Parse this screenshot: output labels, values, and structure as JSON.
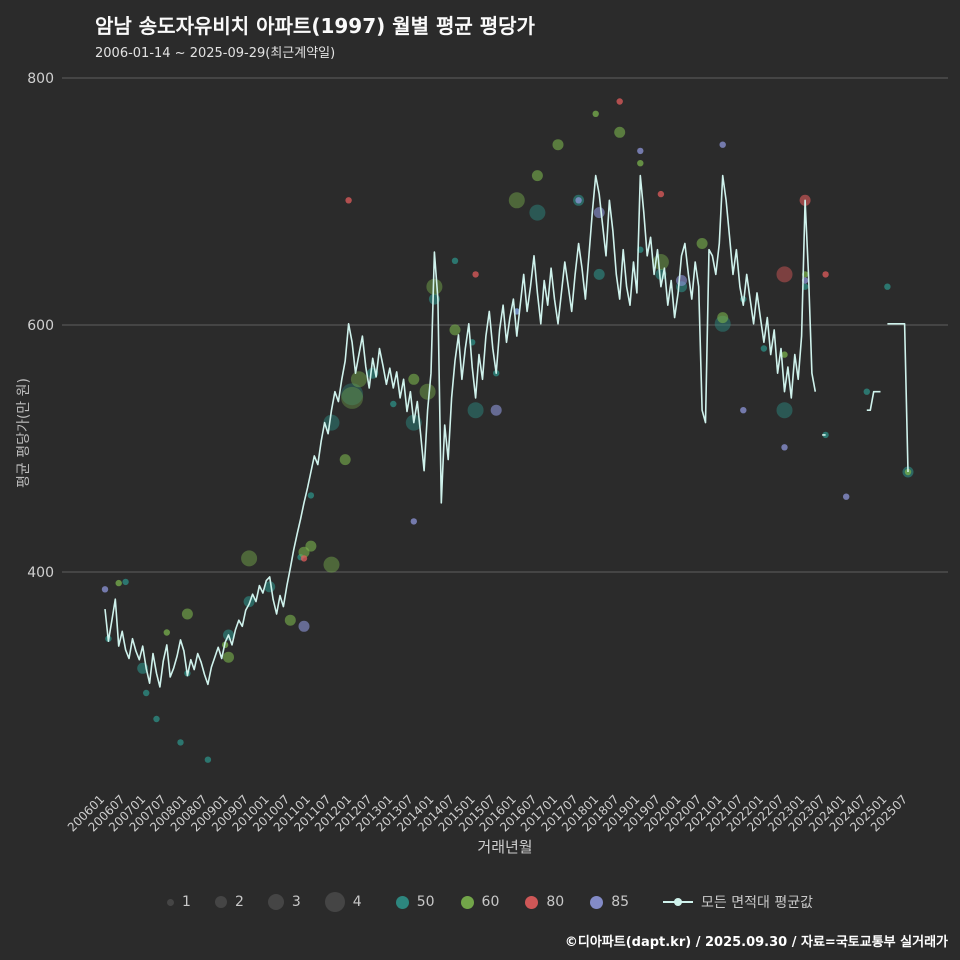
{
  "header": {
    "title": "암남 송도자유비치 아파트(1997) 월별 평균 평당가",
    "subtitle": "2006-01-14 ~ 2025-09-29(최근계약일)"
  },
  "axes": {
    "y_title": "평균 평당가(만 원)",
    "x_title": "거래년월"
  },
  "legend": {
    "sizes": [
      {
        "label": "1"
      },
      {
        "label": "2"
      },
      {
        "label": "3"
      },
      {
        "label": "4"
      }
    ],
    "groups": [
      {
        "id": "50",
        "label": "50"
      },
      {
        "id": "60",
        "label": "60"
      },
      {
        "id": "80",
        "label": "80"
      },
      {
        "id": "85",
        "label": "85"
      }
    ],
    "line_label": "모든 면적대 평균값"
  },
  "footer": {
    "credit": "©디아파트(dapt.kr) / 2025.09.30 / 자료=국토교통부 실거래가"
  },
  "chart_data": {
    "type": "scatter",
    "subtype": "bubble-scatter-with-average-line",
    "title": "암남 송도자유비치 아파트(1997) 월별 평균 평당가",
    "xlabel": "거래년월",
    "ylabel": "평균 평당가(만 원)",
    "x_start": "200601",
    "x_end": "202507",
    "x_ticks": [
      "200601",
      "200607",
      "200701",
      "200707",
      "200801",
      "200807",
      "200901",
      "200907",
      "201001",
      "201007",
      "201101",
      "201107",
      "201201",
      "201207",
      "201301",
      "201307",
      "201401",
      "201407",
      "201501",
      "201507",
      "201601",
      "201607",
      "201701",
      "201707",
      "201801",
      "201807",
      "201901",
      "201907",
      "202001",
      "202007",
      "202101",
      "202107",
      "202201",
      "202207",
      "202301",
      "202307",
      "202401",
      "202407",
      "202501",
      "202507"
    ],
    "y_ticks": [
      800,
      600,
      400
    ],
    "ylim": [
      225,
      800
    ],
    "grid": "horizontal",
    "legend_position": "bottom",
    "colors": {
      "background": "#2b2b2b",
      "grid": "#5f5f5f",
      "axis_text": "#cfcfcf",
      "line": "#cff2ec",
      "size_legend": "#454545",
      "groups": {
        "50": "#2d9087",
        "60": "#7ab24d",
        "80": "#e05c5c",
        "85": "#8d96d8"
      }
    },
    "size_radius": {
      "1": 3.2,
      "2": 5.5,
      "3": 8,
      "4": 11
    },
    "size_opacity": {
      "1": 0.75,
      "2": 0.6,
      "3": 0.45,
      "4": 0.35
    },
    "series": {
      "name": "모든 면적대 평균값",
      "start": "200601",
      "values": [
        370,
        344,
        361,
        378,
        340,
        352,
        337,
        330,
        346,
        336,
        329,
        340,
        322,
        310,
        334,
        318,
        307,
        328,
        341,
        315,
        322,
        332,
        345,
        336,
        316,
        329,
        321,
        334,
        327,
        317,
        309,
        323,
        331,
        339,
        330,
        343,
        349,
        341,
        353,
        361,
        356,
        369,
        374,
        382,
        376,
        389,
        383,
        393,
        396,
        378,
        366,
        381,
        372,
        389,
        403,
        418,
        431,
        443,
        456,
        468,
        481,
        494,
        487,
        506,
        521,
        512,
        531,
        546,
        538,
        556,
        571,
        601,
        586,
        561,
        576,
        591,
        566,
        549,
        573,
        558,
        581,
        567,
        552,
        565,
        549,
        562,
        541,
        556,
        530,
        546,
        521,
        538,
        511,
        482,
        531,
        561,
        659,
        621,
        456,
        519,
        491,
        541,
        571,
        592,
        556,
        581,
        601,
        566,
        541,
        576,
        556,
        591,
        611,
        581,
        561,
        596,
        616,
        586,
        606,
        621,
        591,
        616,
        641,
        611,
        631,
        656,
        626,
        601,
        636,
        616,
        646,
        621,
        601,
        626,
        651,
        631,
        611,
        641,
        666,
        646,
        621,
        656,
        691,
        721,
        706,
        681,
        656,
        701,
        676,
        641,
        621,
        661,
        631,
        616,
        651,
        626,
        721,
        691,
        656,
        671,
        641,
        661,
        631,
        646,
        616,
        636,
        606,
        626,
        656,
        666,
        641,
        621,
        651,
        631,
        531,
        521,
        661,
        656,
        641,
        666,
        721,
        701,
        671,
        641,
        661,
        631,
        616,
        641,
        621,
        601,
        626,
        606,
        586,
        606,
        576,
        596,
        561,
        581,
        546,
        566,
        541,
        576,
        556,
        591,
        701,
        641,
        561,
        546,
        null,
        511,
        511,
        null,
        null,
        null,
        null,
        null,
        null,
        null,
        null,
        null,
        null,
        null,
        531,
        531,
        546,
        546,
        546,
        null,
        601,
        601,
        601,
        601,
        601,
        601,
        481
      ]
    },
    "scatter": [
      [
        "200602",
        346,
        1,
        "50"
      ],
      [
        "200607",
        392,
        1,
        "50"
      ],
      [
        "200612",
        322,
        2,
        "50"
      ],
      [
        "200701",
        302,
        1,
        "50"
      ],
      [
        "200704",
        281,
        1,
        "50"
      ],
      [
        "200711",
        262,
        1,
        "50"
      ],
      [
        "200801",
        318,
        1,
        "50"
      ],
      [
        "200807",
        248,
        1,
        "50"
      ],
      [
        "200901",
        349,
        2,
        "50"
      ],
      [
        "200907",
        376,
        2,
        "50"
      ],
      [
        "201001",
        388,
        2,
        "50"
      ],
      [
        "201010",
        412,
        1,
        "50"
      ],
      [
        "201101",
        462,
        1,
        "50"
      ],
      [
        "201107",
        521,
        3,
        "50"
      ],
      [
        "201201",
        544,
        4,
        "50"
      ],
      [
        "201207",
        561,
        2,
        "50"
      ],
      [
        "201301",
        536,
        1,
        "50"
      ],
      [
        "201307",
        521,
        3,
        "50"
      ],
      [
        "201401",
        621,
        2,
        "50"
      ],
      [
        "201407",
        652,
        1,
        "50"
      ],
      [
        "201412",
        586,
        1,
        "50"
      ],
      [
        "201501",
        531,
        3,
        "50"
      ],
      [
        "201507",
        561,
        1,
        "50"
      ],
      [
        "201601",
        611,
        1,
        "50"
      ],
      [
        "201607",
        691,
        3,
        "50"
      ],
      [
        "201707",
        701,
        2,
        "50"
      ],
      [
        "201801",
        641,
        2,
        "50"
      ],
      [
        "201901",
        661,
        1,
        "50"
      ],
      [
        "201907",
        641,
        2,
        "50"
      ],
      [
        "202001",
        631,
        2,
        "50"
      ],
      [
        "202101",
        601,
        3,
        "50"
      ],
      [
        "202107",
        621,
        1,
        "50"
      ],
      [
        "202201",
        581,
        1,
        "50"
      ],
      [
        "202207",
        531,
        3,
        "50"
      ],
      [
        "202301",
        631,
        1,
        "50"
      ],
      [
        "202307",
        511,
        1,
        "50"
      ],
      [
        "202407",
        546,
        1,
        "50"
      ],
      [
        "202501",
        631,
        1,
        "50"
      ],
      [
        "202507",
        481,
        2,
        "50"
      ],
      [
        "200605",
        391,
        1,
        "60"
      ],
      [
        "200707",
        351,
        1,
        "60"
      ],
      [
        "200801",
        366,
        2,
        "60"
      ],
      [
        "200812",
        341,
        1,
        "60"
      ],
      [
        "200901",
        331,
        2,
        "60"
      ],
      [
        "200907",
        411,
        3,
        "60"
      ],
      [
        "201007",
        361,
        2,
        "60"
      ],
      [
        "201011",
        416,
        2,
        "60"
      ],
      [
        "201101",
        421,
        2,
        "60"
      ],
      [
        "201107",
        406,
        3,
        "60"
      ],
      [
        "201111",
        491,
        2,
        "60"
      ],
      [
        "201201",
        541,
        4,
        "60"
      ],
      [
        "201203",
        556,
        3,
        "60"
      ],
      [
        "201307",
        556,
        2,
        "60"
      ],
      [
        "201311",
        546,
        3,
        "60"
      ],
      [
        "201401",
        631,
        3,
        "60"
      ],
      [
        "201407",
        596,
        2,
        "60"
      ],
      [
        "201601",
        701,
        3,
        "60"
      ],
      [
        "201607",
        721,
        2,
        "60"
      ],
      [
        "201701",
        746,
        2,
        "60"
      ],
      [
        "201712",
        771,
        1,
        "60"
      ],
      [
        "201807",
        756,
        2,
        "60"
      ],
      [
        "201901",
        731,
        1,
        "60"
      ],
      [
        "201907",
        651,
        3,
        "60"
      ],
      [
        "202007",
        666,
        2,
        "60"
      ],
      [
        "202101",
        606,
        2,
        "60"
      ],
      [
        "202207",
        576,
        1,
        "60"
      ],
      [
        "202301",
        641,
        1,
        "60"
      ],
      [
        "202507",
        481,
        1,
        "60"
      ],
      [
        "201011",
        411,
        1,
        "80"
      ],
      [
        "201112",
        701,
        1,
        "80"
      ],
      [
        "201501",
        641,
        1,
        "80"
      ],
      [
        "201807",
        781,
        1,
        "80"
      ],
      [
        "201907",
        706,
        1,
        "80"
      ],
      [
        "202207",
        641,
        3,
        "80"
      ],
      [
        "202301",
        701,
        2,
        "80"
      ],
      [
        "202307",
        641,
        1,
        "80"
      ],
      [
        "200601",
        386,
        1,
        "85"
      ],
      [
        "201011",
        356,
        2,
        "85"
      ],
      [
        "201307",
        441,
        1,
        "85"
      ],
      [
        "201507",
        531,
        2,
        "85"
      ],
      [
        "201601",
        611,
        1,
        "85"
      ],
      [
        "201707",
        701,
        1,
        "85"
      ],
      [
        "201801",
        691,
        2,
        "85"
      ],
      [
        "201901",
        741,
        1,
        "85"
      ],
      [
        "202001",
        636,
        2,
        "85"
      ],
      [
        "202101",
        746,
        1,
        "85"
      ],
      [
        "202107",
        531,
        1,
        "85"
      ],
      [
        "202207",
        501,
        1,
        "85"
      ],
      [
        "202301",
        636,
        1,
        "85"
      ],
      [
        "202401",
        461,
        1,
        "85"
      ]
    ]
  }
}
